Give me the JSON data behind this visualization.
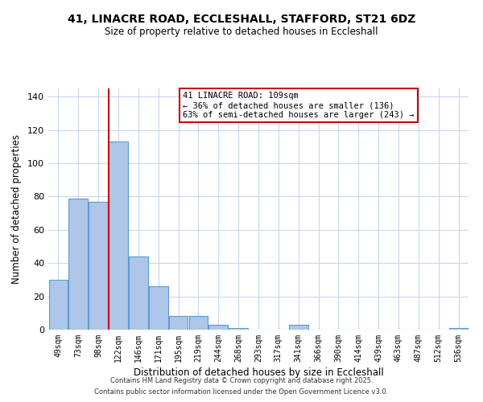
{
  "title_line1": "41, LINACRE ROAD, ECCLESHALL, STAFFORD, ST21 6DZ",
  "title_line2": "Size of property relative to detached houses in Eccleshall",
  "xlabel": "Distribution of detached houses by size in Eccleshall",
  "ylabel": "Number of detached properties",
  "bar_labels": [
    "49sqm",
    "73sqm",
    "98sqm",
    "122sqm",
    "146sqm",
    "171sqm",
    "195sqm",
    "219sqm",
    "244sqm",
    "268sqm",
    "293sqm",
    "317sqm",
    "341sqm",
    "366sqm",
    "390sqm",
    "414sqm",
    "439sqm",
    "463sqm",
    "487sqm",
    "512sqm",
    "536sqm"
  ],
  "bar_values": [
    30,
    79,
    77,
    113,
    44,
    26,
    8,
    8,
    3,
    1,
    0,
    0,
    3,
    0,
    0,
    0,
    0,
    0,
    0,
    0,
    1
  ],
  "bar_color": "#aec6e8",
  "bar_edge_color": "#5b9bd5",
  "vline_x": 2.5,
  "vline_color": "#cc0000",
  "annotation_title": "41 LINACRE ROAD: 109sqm",
  "annotation_line2": "← 36% of detached houses are smaller (136)",
  "annotation_line3": "63% of semi-detached houses are larger (243) →",
  "ylim": [
    0,
    145
  ],
  "yticks": [
    0,
    20,
    40,
    60,
    80,
    100,
    120,
    140
  ],
  "background_color": "#ffffff",
  "grid_color": "#c8d8ec",
  "footer_line1": "Contains HM Land Registry data © Crown copyright and database right 2025.",
  "footer_line2": "Contains public sector information licensed under the Open Government Licence v3.0."
}
